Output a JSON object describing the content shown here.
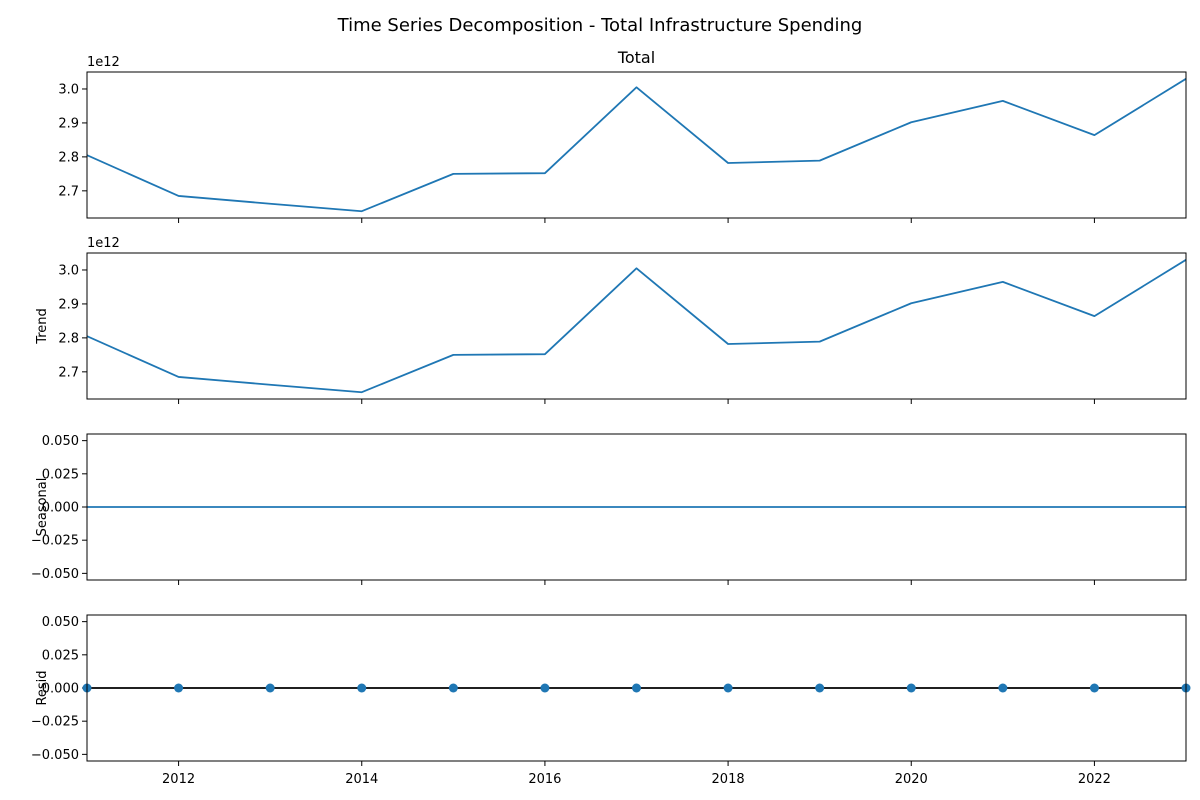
{
  "figure": {
    "title": "Time Series Decomposition - Total Infrastructure Spending"
  },
  "colors": {
    "series": "#1f77b4",
    "axis": "#000000",
    "resid_zero_line": "#000000"
  },
  "chart_data": [
    {
      "id": "total",
      "type": "line",
      "title": "Total",
      "ylabel": "",
      "offset_label": "1e12",
      "x": [
        2011,
        2012,
        2013,
        2014,
        2015,
        2016,
        2017,
        2018,
        2019,
        2020,
        2021,
        2022,
        2023
      ],
      "y": [
        2805000000000.0,
        2685000000000.0,
        2662000000000.0,
        2640000000000.0,
        2750000000000.0,
        2752000000000.0,
        3005000000000.0,
        2782000000000.0,
        2789000000000.0,
        2902000000000.0,
        2965000000000.0,
        2864000000000.0,
        3030000000000.0
      ],
      "xlim": [
        2011,
        2023
      ],
      "ylim": [
        2620000000000.0,
        3050000000000.0
      ],
      "yticks": [
        2700000000000.0,
        2800000000000.0,
        2900000000000.0,
        3000000000000.0
      ],
      "ytick_labels": [
        "2.7",
        "2.8",
        "2.9",
        "3.0"
      ],
      "xticks": [
        2012,
        2014,
        2016,
        2018,
        2020,
        2022
      ],
      "xtick_labels": [],
      "zero_line": false,
      "markers": false
    },
    {
      "id": "trend",
      "type": "line",
      "title": "",
      "ylabel": "Trend",
      "offset_label": "1e12",
      "x": [
        2011,
        2012,
        2013,
        2014,
        2015,
        2016,
        2017,
        2018,
        2019,
        2020,
        2021,
        2022,
        2023
      ],
      "y": [
        2805000000000.0,
        2685000000000.0,
        2662000000000.0,
        2640000000000.0,
        2750000000000.0,
        2752000000000.0,
        3005000000000.0,
        2782000000000.0,
        2789000000000.0,
        2902000000000.0,
        2965000000000.0,
        2864000000000.0,
        3030000000000.0
      ],
      "xlim": [
        2011,
        2023
      ],
      "ylim": [
        2620000000000.0,
        3050000000000.0
      ],
      "yticks": [
        2700000000000.0,
        2800000000000.0,
        2900000000000.0,
        3000000000000.0
      ],
      "ytick_labels": [
        "2.7",
        "2.8",
        "2.9",
        "3.0"
      ],
      "xticks": [
        2012,
        2014,
        2016,
        2018,
        2020,
        2022
      ],
      "xtick_labels": [],
      "zero_line": false,
      "markers": false
    },
    {
      "id": "seasonal",
      "type": "line",
      "title": "",
      "ylabel": "Seasonal",
      "offset_label": "",
      "x": [
        2011,
        2012,
        2013,
        2014,
        2015,
        2016,
        2017,
        2018,
        2019,
        2020,
        2021,
        2022,
        2023
      ],
      "y": [
        0,
        0,
        0,
        0,
        0,
        0,
        0,
        0,
        0,
        0,
        0,
        0,
        0
      ],
      "xlim": [
        2011,
        2023
      ],
      "ylim": [
        -0.055,
        0.055
      ],
      "yticks": [
        -0.05,
        -0.025,
        0.0,
        0.025,
        0.05
      ],
      "ytick_labels": [
        "−0.050",
        "−0.025",
        "0.000",
        "0.025",
        "0.050"
      ],
      "xticks": [
        2012,
        2014,
        2016,
        2018,
        2020,
        2022
      ],
      "xtick_labels": [],
      "zero_line": false,
      "markers": false
    },
    {
      "id": "resid",
      "type": "scatter",
      "title": "",
      "ylabel": "Resid",
      "offset_label": "",
      "x": [
        2011,
        2012,
        2013,
        2014,
        2015,
        2016,
        2017,
        2018,
        2019,
        2020,
        2021,
        2022,
        2023
      ],
      "y": [
        0,
        0,
        0,
        0,
        0,
        0,
        0,
        0,
        0,
        0,
        0,
        0,
        0
      ],
      "xlim": [
        2011,
        2023
      ],
      "ylim": [
        -0.055,
        0.055
      ],
      "yticks": [
        -0.05,
        -0.025,
        0.0,
        0.025,
        0.05
      ],
      "ytick_labels": [
        "−0.050",
        "−0.025",
        "0.000",
        "0.025",
        "0.050"
      ],
      "xticks": [
        2012,
        2014,
        2016,
        2018,
        2020,
        2022
      ],
      "xtick_labels": [
        "2012",
        "2014",
        "2016",
        "2018",
        "2020",
        "2022"
      ],
      "zero_line": true,
      "markers": true
    }
  ]
}
